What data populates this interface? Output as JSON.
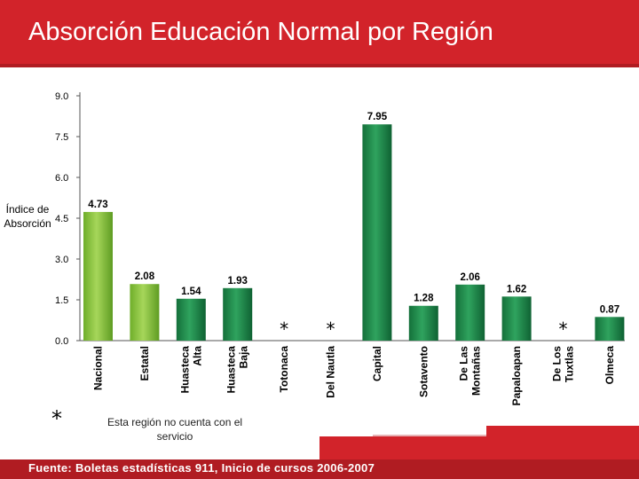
{
  "header": {
    "title": "Absorción Educación Normal por Región"
  },
  "axis": {
    "ylabel_line1": "Índice de",
    "ylabel_line2": "Absorción"
  },
  "footnote": {
    "symbol": "*",
    "text_line1": "Esta región no cuenta con el",
    "text_line2": "servicio"
  },
  "footer": {
    "source": "Fuente: Boletas estadísticas 911, Inicio de cursos 2006-2007"
  },
  "colors": {
    "brand": "#d2232a",
    "bar_light_green": "#8cc63f",
    "bar_dark_green": "#1e8a4c"
  },
  "chart_data": {
    "type": "bar",
    "title": "Absorción Educación Normal por Región",
    "xlabel": "",
    "ylabel": "Índice de Absorción",
    "ylim": [
      0,
      9
    ],
    "yticks": [
      "0.0",
      "1.5",
      "3.0",
      "4.5",
      "6.0",
      "7.5",
      "9.0"
    ],
    "grid": false,
    "categories": [
      [
        "Nacional"
      ],
      [
        "Estatal"
      ],
      [
        "Huasteca",
        "Alta"
      ],
      [
        "Huasteca",
        "Baja"
      ],
      [
        "Totonaca"
      ],
      [
        "Del Nautla"
      ],
      [
        "Capital"
      ],
      [
        "Sotavento"
      ],
      [
        "De Las",
        "Montañas"
      ],
      [
        "Papaloapan"
      ],
      [
        "De Los",
        "Tuxtlas"
      ],
      [
        "Olmeca"
      ]
    ],
    "values": [
      4.73,
      2.08,
      1.54,
      1.93,
      null,
      null,
      7.95,
      1.28,
      2.06,
      1.62,
      null,
      0.87
    ],
    "labels": [
      "4.73",
      "2.08",
      "1.54",
      "1.93",
      "*",
      "*",
      "7.95",
      "1.28",
      "2.06",
      "1.62",
      "*",
      "0.87"
    ],
    "bar_colors": [
      "light",
      "light",
      "dark",
      "dark",
      "dark",
      "dark",
      "dark",
      "dark",
      "dark",
      "dark",
      "dark",
      "dark"
    ]
  }
}
